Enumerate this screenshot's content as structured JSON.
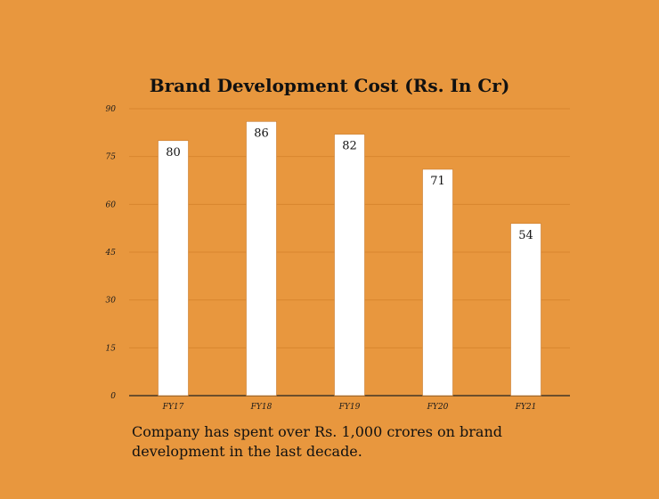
{
  "chart_data": {
    "type": "bar",
    "title": "Brand Development Cost (Rs. In Cr)",
    "categories": [
      "FY17",
      "FY18",
      "FY19",
      "FY20",
      "FY21"
    ],
    "values": [
      80,
      86,
      82,
      71,
      54
    ],
    "yticks": [
      0,
      15,
      30,
      45,
      60,
      75,
      90
    ],
    "ylim": [
      0,
      90
    ],
    "xlabel": "",
    "ylabel": "",
    "grid": true,
    "colors": {
      "bar": "#ffffff",
      "grid": "#d9862f",
      "axis": "#222222"
    }
  },
  "caption": "Company has spent over Rs. 1,000 crores on brand development in the last decade."
}
